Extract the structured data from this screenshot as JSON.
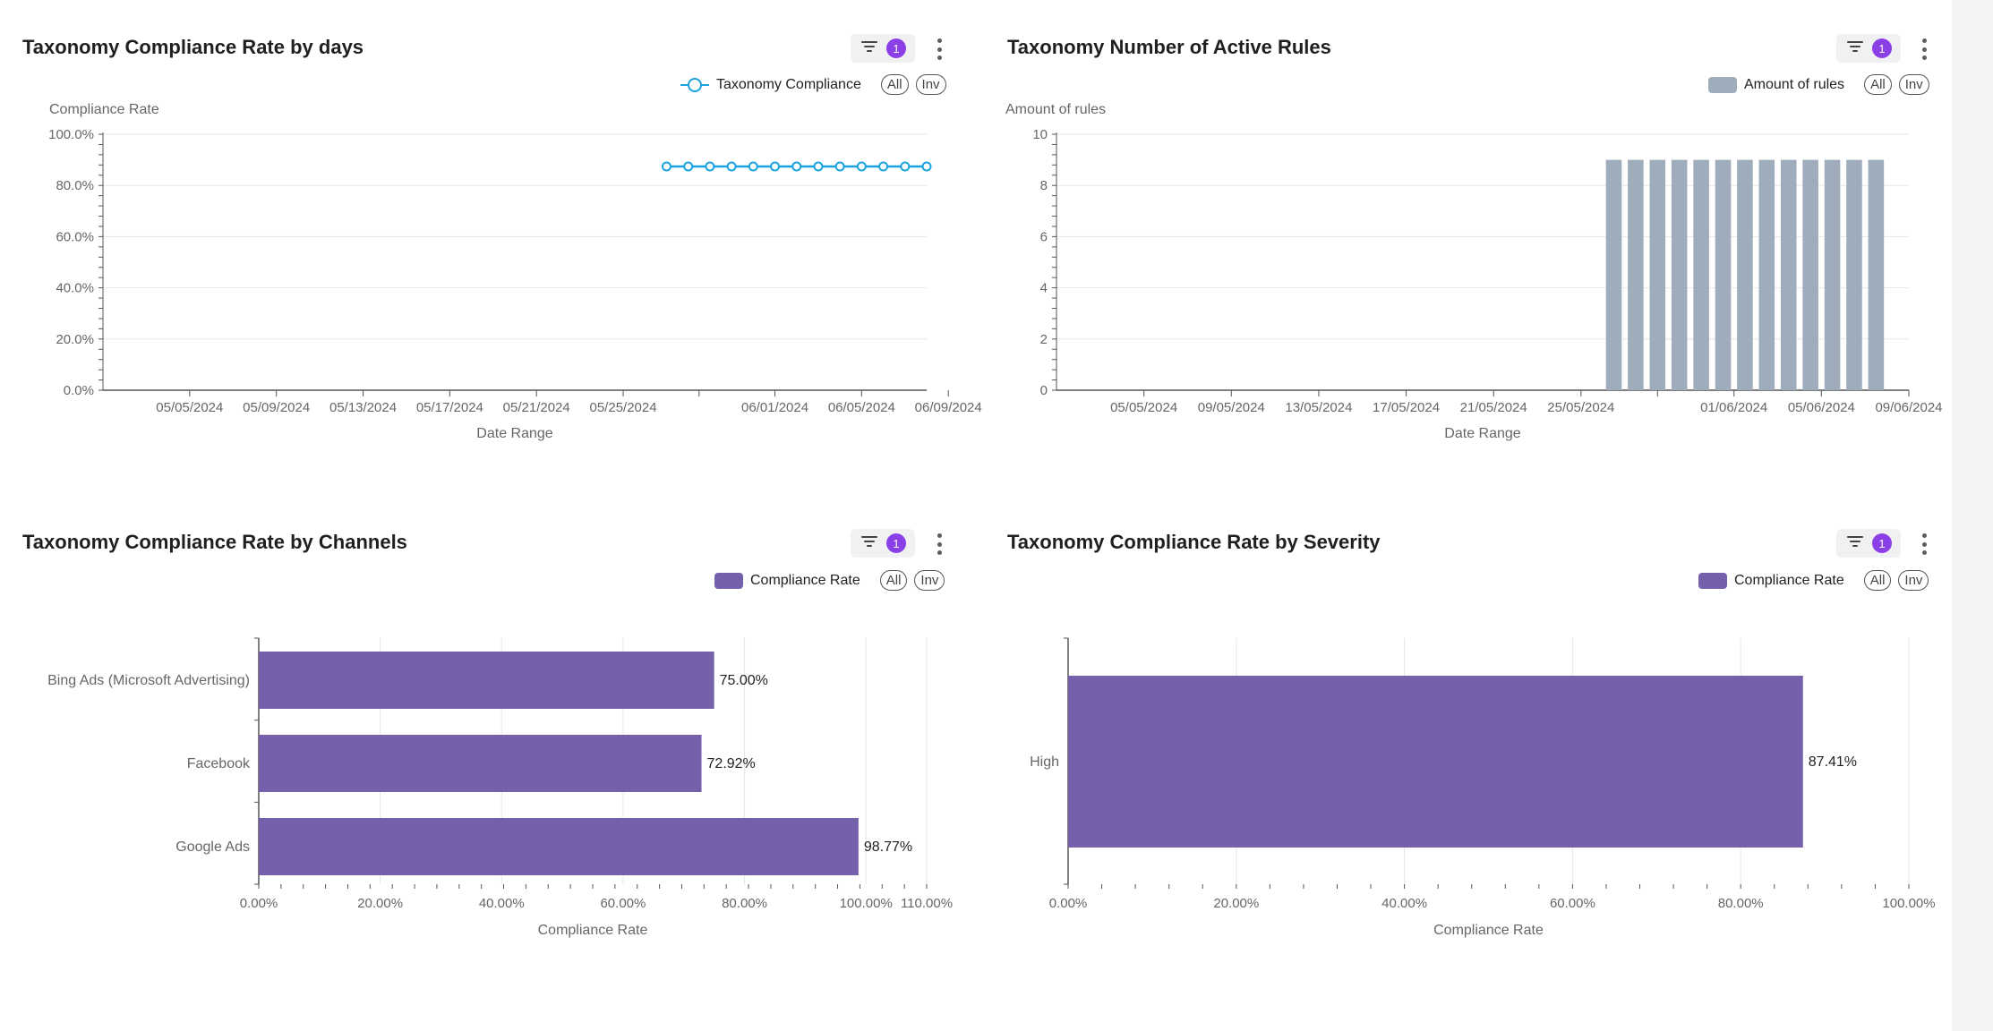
{
  "colors": {
    "line": "#1aa3e0",
    "bar_gray": "#9facbb",
    "bar_purple": "#7560ab",
    "badge": "#8b3fe6",
    "grid": "#e6e6e6",
    "axis": "#555555",
    "tick_text": "#666666"
  },
  "pills": {
    "all": "All",
    "inv": "Inv"
  },
  "panels": [
    {
      "title": "Taxonomy Compliance Rate by days",
      "badge": "1",
      "legend": "Taxonomy Compliance"
    },
    {
      "title": "Taxonomy Number of Active Rules",
      "badge": "1",
      "legend": "Amount of rules"
    },
    {
      "title": "Taxonomy Compliance Rate by Channels",
      "badge": "1",
      "legend": "Compliance Rate"
    },
    {
      "title": "Taxonomy Compliance Rate by Severity",
      "badge": "1",
      "legend": "Compliance Rate"
    }
  ],
  "chart_data": [
    {
      "type": "line",
      "title": "Taxonomy Compliance Rate by days",
      "xlabel": "Date Range",
      "ylabel": "Compliance Rate",
      "yticks": [
        "0.0%",
        "20.0%",
        "40.0%",
        "60.0%",
        "80.0%",
        "100.0%"
      ],
      "ylim": [
        0,
        100
      ],
      "xlim_days": [
        0,
        38
      ],
      "x_tick_labels": [
        "05/05/2024",
        "05/09/2024",
        "05/13/2024",
        "05/17/2024",
        "05/21/2024",
        "05/25/2024",
        "06/01/2024",
        "06/05/2024",
        "06/09/2024"
      ],
      "x_tick_days": [
        4,
        8,
        12,
        16,
        20,
        24,
        31,
        35,
        39
      ],
      "series": [
        {
          "name": "Taxonomy Compliance",
          "x_days": [
            26,
            27,
            28,
            29,
            30,
            31,
            32,
            33,
            34,
            35,
            36,
            37,
            38
          ],
          "values": [
            87.4,
            87.4,
            87.4,
            87.4,
            87.4,
            87.4,
            87.4,
            87.4,
            87.4,
            87.4,
            87.4,
            87.4,
            87.4
          ]
        }
      ]
    },
    {
      "type": "bar",
      "title": "Taxonomy Number of Active Rules",
      "xlabel": "Date Range",
      "ylabel": "Amount of rules",
      "yticks": [
        "0",
        "2",
        "4",
        "6",
        "8",
        "10"
      ],
      "ylim": [
        0,
        10
      ],
      "xlim_days": [
        0,
        39
      ],
      "x_tick_labels": [
        "05/05/2024",
        "09/05/2024",
        "13/05/2024",
        "17/05/2024",
        "21/05/2024",
        "25/05/2024",
        "01/06/2024",
        "05/06/2024",
        "09/06/2024"
      ],
      "x_tick_days": [
        4,
        8,
        12,
        16,
        20,
        24,
        31,
        35,
        39
      ],
      "series": [
        {
          "name": "Amount of rules",
          "x_days": [
            26,
            27,
            28,
            29,
            30,
            31,
            32,
            33,
            34,
            35,
            36,
            37,
            38
          ],
          "values": [
            9,
            9,
            9,
            9,
            9,
            9,
            9,
            9,
            9,
            9,
            9,
            9,
            9
          ]
        }
      ]
    },
    {
      "type": "bar",
      "orientation": "horizontal",
      "title": "Taxonomy Compliance Rate by Channels",
      "xlabel": "Compliance Rate",
      "xlim": [
        0,
        110
      ],
      "xticks": [
        "0.00%",
        "20.00%",
        "40.00%",
        "60.00%",
        "80.00%",
        "100.00%",
        "110.00%"
      ],
      "xtick_values": [
        0,
        20,
        40,
        60,
        80,
        100,
        110
      ],
      "categories": [
        "Bing Ads (Microsoft Advertising)",
        "Facebook",
        "Google Ads"
      ],
      "series": [
        {
          "name": "Compliance Rate",
          "values": [
            75.0,
            72.92,
            98.77
          ],
          "labels": [
            "75.00%",
            "72.92%",
            "98.77%"
          ]
        }
      ]
    },
    {
      "type": "bar",
      "orientation": "horizontal",
      "title": "Taxonomy Compliance Rate by Severity",
      "xlabel": "Compliance Rate",
      "xlim": [
        0,
        100
      ],
      "xticks": [
        "0.00%",
        "20.00%",
        "40.00%",
        "60.00%",
        "80.00%",
        "100.00%"
      ],
      "xtick_values": [
        0,
        20,
        40,
        60,
        80,
        100
      ],
      "categories": [
        "High"
      ],
      "series": [
        {
          "name": "Compliance Rate",
          "values": [
            87.41
          ],
          "labels": [
            "87.41%"
          ]
        }
      ]
    }
  ]
}
